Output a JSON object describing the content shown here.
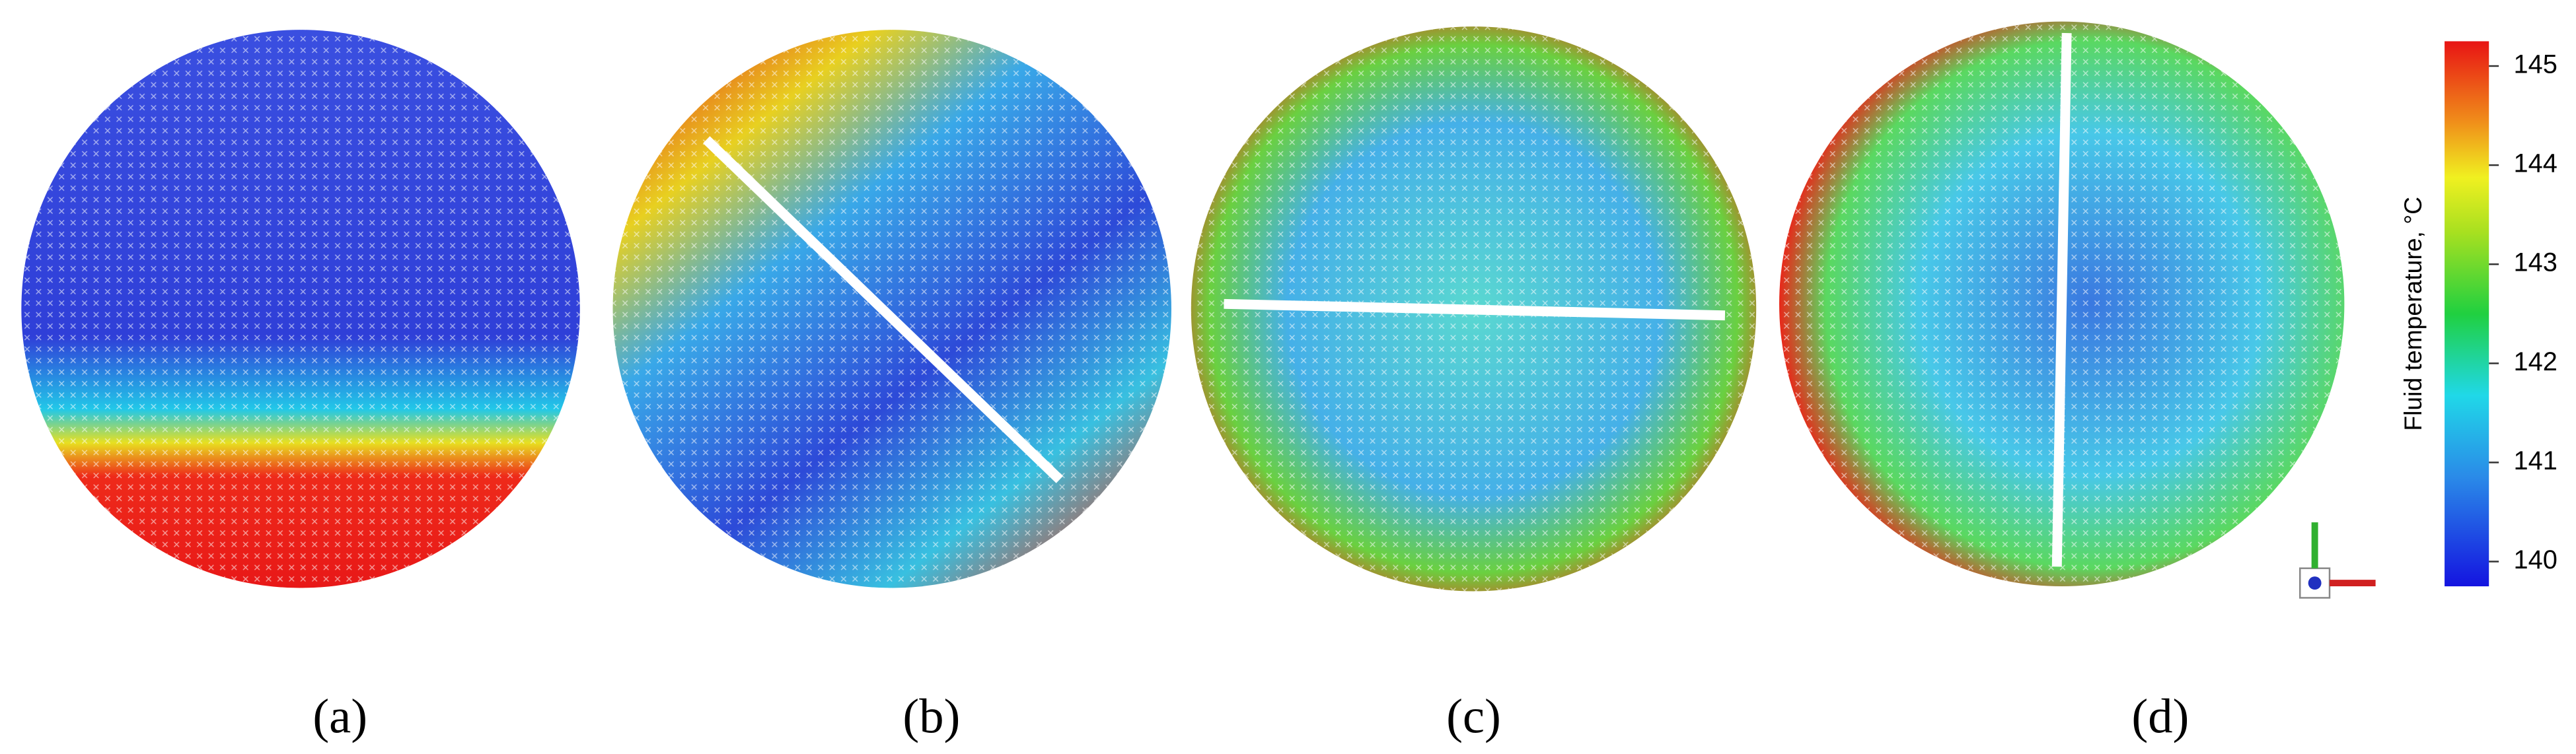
{
  "panels": [
    {
      "label": "(a)"
    },
    {
      "label": "(b)"
    },
    {
      "label": "(c)"
    },
    {
      "label": "(d)"
    }
  ],
  "colorbar": {
    "title": "Fluid temperature, °C",
    "range": [
      139.75,
      145.25
    ],
    "ticks": [
      140,
      141,
      142,
      143,
      144,
      145
    ]
  }
}
